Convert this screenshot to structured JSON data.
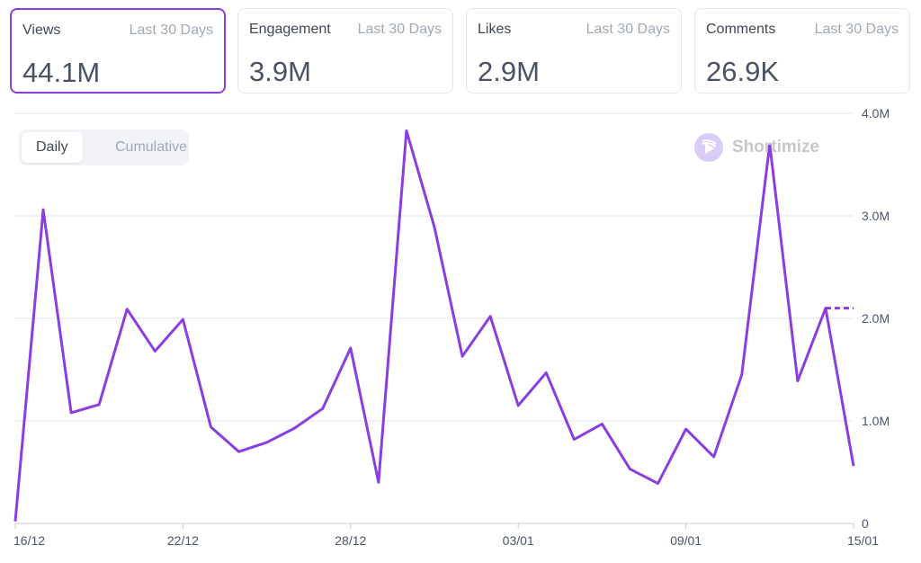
{
  "cards": [
    {
      "label": "Views",
      "period": "Last 30 Days",
      "value": "44.1M",
      "active": true
    },
    {
      "label": "Engagement",
      "period": "Last 30 Days",
      "value": "3.9M",
      "active": false
    },
    {
      "label": "Likes",
      "period": "Last 30 Days",
      "value": "2.9M",
      "active": false
    },
    {
      "label": "Comments",
      "period": "Last 30 Days",
      "value": "26.9K",
      "active": false
    }
  ],
  "toggle": {
    "daily": "Daily",
    "cumulative": "Cumulative",
    "selected": "Daily"
  },
  "brand": {
    "name": "Shortimize"
  },
  "colors": {
    "accent": "#8a3ee0",
    "grid": "#e2e2f0"
  },
  "chart_data": {
    "type": "line",
    "x": [
      "16/12",
      "17/12",
      "18/12",
      "19/12",
      "20/12",
      "21/12",
      "22/12",
      "23/12",
      "24/12",
      "25/12",
      "26/12",
      "27/12",
      "28/12",
      "29/12",
      "30/12",
      "31/12",
      "01/01",
      "02/01",
      "03/01",
      "04/01",
      "05/01",
      "06/01",
      "07/01",
      "08/01",
      "09/01",
      "10/01",
      "11/01",
      "12/01",
      "13/01",
      "14/01",
      "15/01"
    ],
    "series": [
      {
        "values": [
          0.02,
          3.06,
          1.08,
          1.16,
          2.09,
          1.68,
          1.99,
          0.94,
          0.7,
          0.79,
          0.93,
          1.12,
          1.71,
          0.4,
          3.83,
          2.89,
          1.63,
          2.02,
          1.15,
          1.47,
          0.82,
          0.97,
          0.53,
          0.39,
          0.92,
          0.65,
          1.45,
          3.7,
          1.39,
          2.1,
          0.56
        ]
      }
    ],
    "projection": {
      "from": "14/01",
      "to": "15/01",
      "value": 2.1,
      "style": "dashed"
    },
    "x_tick_labels": [
      "16/12",
      "22/12",
      "28/12",
      "03/01",
      "09/01",
      "15/01"
    ],
    "y_tick_labels": [
      "0",
      "1.0M",
      "2.0M",
      "3.0M",
      "4.0M"
    ],
    "y_ticks": [
      0,
      1,
      2,
      3,
      4
    ],
    "y_unit": "M",
    "ylim": [
      0,
      4
    ],
    "y_axis_position": "right",
    "grid": true
  }
}
